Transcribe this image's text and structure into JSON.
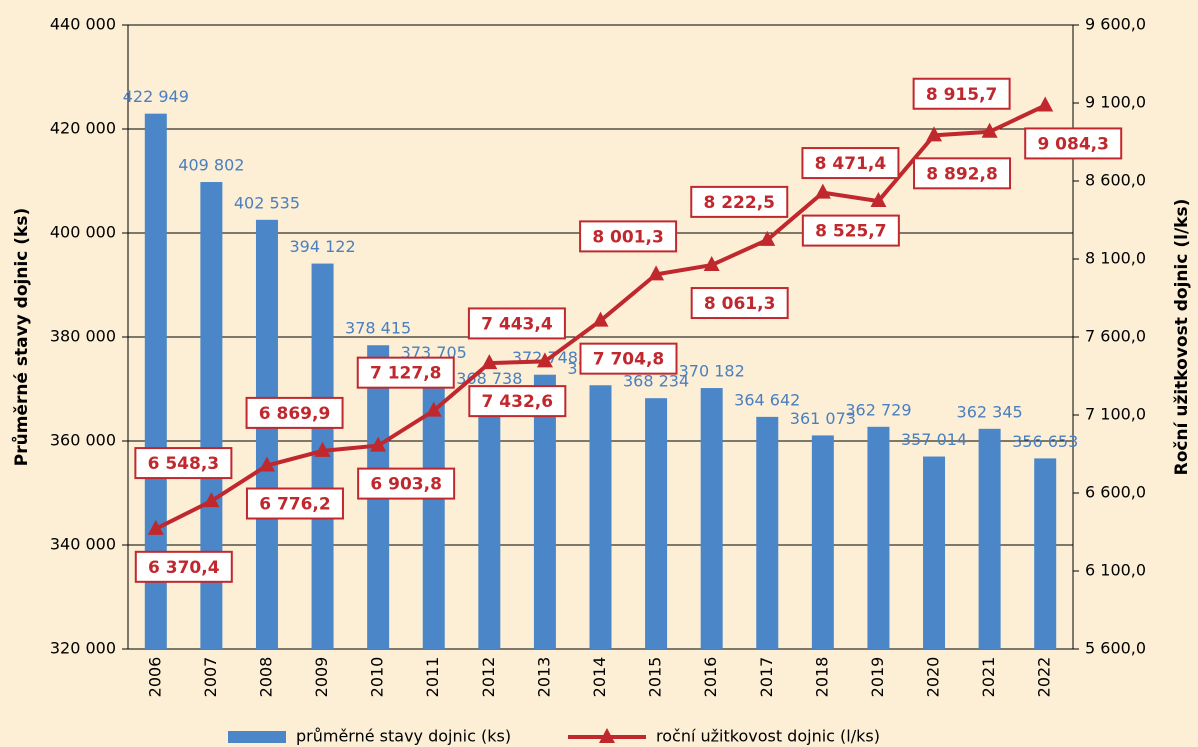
{
  "chart_data": {
    "type": "bar_line",
    "y_label": "Průměrné stavy dojnic (ks)",
    "y2_label": "Roční užitkovost dojnic (l/ks)",
    "categories": [
      "2006",
      "2007",
      "2008",
      "2009",
      "2010",
      "2011",
      "2012",
      "2013",
      "2014",
      "2015",
      "2016",
      "2017",
      "2018",
      "2019",
      "2020",
      "2021",
      "2022"
    ],
    "series": [
      {
        "name": "průměrné stavy dojnic (ks)",
        "type": "bar",
        "color": "#4a86c8",
        "values": [
          422949,
          409802,
          402535,
          394122,
          378415,
          373705,
          368738,
          372748,
          370721,
          368234,
          370182,
          364642,
          361073,
          362729,
          357014,
          362345,
          356653
        ],
        "value_labels": [
          "422 949",
          "409 802",
          "402 535",
          "394 122",
          "378 415",
          "373 705",
          "368 738",
          "372 748",
          "370 721",
          "368 234",
          "370 182",
          "364 642",
          "361 073",
          "362 729",
          "357 014",
          "362 345",
          "356 653"
        ]
      },
      {
        "name": "roční užitkovost dojnic (l/ks)",
        "type": "line",
        "axis": "y2",
        "color": "#c0282d",
        "values": [
          6370.4,
          6548.3,
          6776.2,
          6869.9,
          6903.8,
          7127.8,
          7432.6,
          7443.4,
          7704.8,
          8001.3,
          8061.3,
          8222.5,
          8525.7,
          8471.4,
          8892.8,
          8915.7,
          9084.3
        ],
        "value_labels": [
          "6 370,4",
          "6 548,3",
          "6 776,2",
          "6 869,9",
          "6 903,8",
          "7 127,8",
          "7 432,6",
          "7 443,4",
          "7 704,8",
          "8 001,3",
          "8 061,3",
          "8 222,5",
          "8 525,7",
          "8 471,4",
          "8 892,8",
          "8 915,7",
          "9 084,3"
        ]
      }
    ],
    "ylim": [
      320000,
      440000
    ],
    "yticks": [
      {
        "value": 320000,
        "label": "320 000"
      },
      {
        "value": 340000,
        "label": "340 000"
      },
      {
        "value": 360000,
        "label": "360 000"
      },
      {
        "value": 380000,
        "label": "380 000"
      },
      {
        "value": 400000,
        "label": "400 000"
      },
      {
        "value": 420000,
        "label": "420 000"
      },
      {
        "value": 440000,
        "label": "440 000"
      }
    ],
    "y2lim": [
      5600,
      9600
    ],
    "y2ticks": [
      {
        "value": 5600,
        "label": "5 600,0"
      },
      {
        "value": 6100,
        "label": "6 100,0"
      },
      {
        "value": 6600,
        "label": "6 600,0"
      },
      {
        "value": 7100,
        "label": "7 100,0"
      },
      {
        "value": 7600,
        "label": "7 600,0"
      },
      {
        "value": 8100,
        "label": "8 100,0"
      },
      {
        "value": 8600,
        "label": "8 600,0"
      },
      {
        "value": 9100,
        "label": "9 100,0"
      },
      {
        "value": 9600,
        "label": "9 600,0"
      }
    ],
    "grid": true
  }
}
